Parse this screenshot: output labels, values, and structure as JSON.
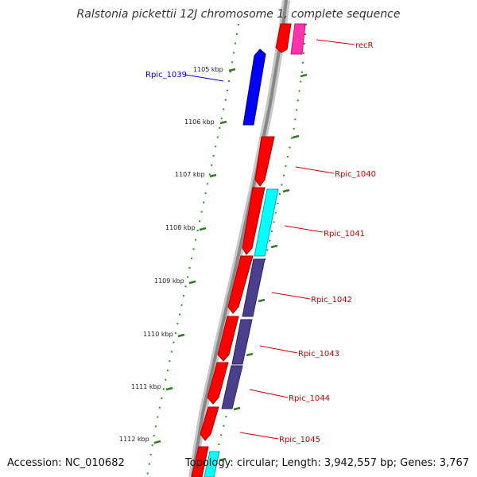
{
  "title": "Ralstonia pickettii 12J chromosome 1, complete sequence",
  "footer": {
    "accession": "Accession: NC_010682",
    "summary": "Topology: circular; Length: 3,942,557 bp; Genes: 3,767"
  },
  "colors": {
    "forward_cds": "#ff0000",
    "reverse_cds": "#0000ff",
    "cyan_feature": "#00ffff",
    "magenta_feature": "#ff33aa",
    "purple_feature": "#4a3f8f",
    "ticks": "#2f7d1f",
    "backbone": "#888888",
    "forward_label": "#cc0000",
    "reverse_label": "#0000cc"
  },
  "kbp_ticks": [
    "1105 kbp",
    "1106 kbp",
    "1107 kbp",
    "1108 kbp",
    "1109 kbp",
    "1110 kbp",
    "1111 kbp",
    "1112 kbp"
  ],
  "gene_labels": [
    {
      "text": "recR",
      "strand": "forward"
    },
    {
      "text": "Rpic_1039",
      "strand": "reverse"
    },
    {
      "text": "Rpic_1040",
      "strand": "forward"
    },
    {
      "text": "Rpic_1041",
      "strand": "forward"
    },
    {
      "text": "Rpic_1042",
      "strand": "forward"
    },
    {
      "text": "Rpic_1043",
      "strand": "forward"
    },
    {
      "text": "Rpic_1044",
      "strand": "forward"
    },
    {
      "text": "Rpic_1045",
      "strand": "forward"
    }
  ]
}
